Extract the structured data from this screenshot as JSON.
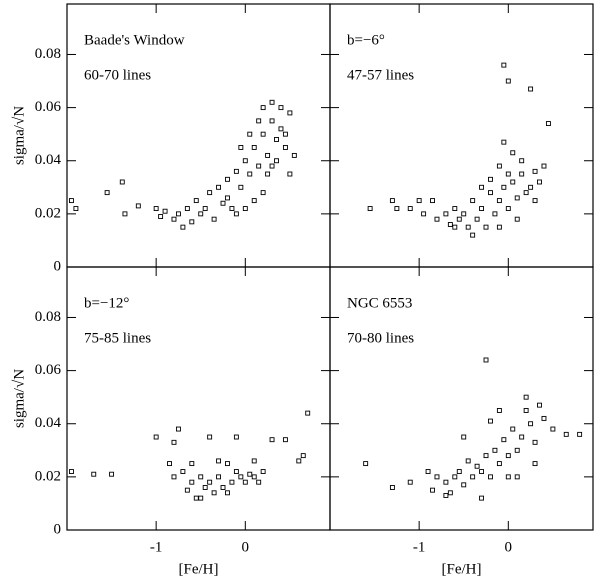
{
  "chart_data": [
    {
      "type": "scatter",
      "title": "Baade's Window",
      "subtitle": "60-70 lines",
      "ylabel": "sigma/√N",
      "xlim": [
        -2,
        0.95
      ],
      "ylim": [
        0,
        0.099
      ],
      "xticks": [
        -1,
        0
      ],
      "yticks": [
        0,
        0.02,
        0.04,
        0.06,
        0.08
      ],
      "x": [
        -1.95,
        -1.9,
        -1.55,
        -1.38,
        -1.35,
        -1.2,
        -1.0,
        -0.95,
        -0.9,
        -0.8,
        -0.75,
        -0.7,
        -0.65,
        -0.6,
        -0.55,
        -0.5,
        -0.45,
        -0.4,
        -0.35,
        -0.3,
        -0.25,
        -0.2,
        -0.15,
        -0.1,
        -0.05,
        0,
        0.05,
        0.1,
        0.15,
        0.2,
        0.25,
        0.3,
        0.35,
        0.4,
        0.45,
        0.5,
        0.55,
        0.3,
        0.2,
        0.1,
        -0.05,
        0,
        0.15,
        0.25,
        0.4,
        0.35,
        -0.2,
        -0.1,
        0.05,
        0.2,
        0.3,
        0.45,
        0.5
      ],
      "y": [
        0.025,
        0.022,
        0.028,
        0.032,
        0.02,
        0.023,
        0.022,
        0.019,
        0.021,
        0.018,
        0.02,
        0.015,
        0.022,
        0.017,
        0.025,
        0.02,
        0.022,
        0.028,
        0.018,
        0.03,
        0.024,
        0.033,
        0.022,
        0.036,
        0.03,
        0.04,
        0.035,
        0.045,
        0.038,
        0.05,
        0.042,
        0.055,
        0.048,
        0.052,
        0.045,
        0.058,
        0.042,
        0.062,
        0.028,
        0.025,
        0.045,
        0.022,
        0.055,
        0.035,
        0.06,
        0.04,
        0.026,
        0.02,
        0.05,
        0.06,
        0.038,
        0.05,
        0.035
      ]
    },
    {
      "type": "scatter",
      "title": "b=−6°",
      "subtitle": "47-57 lines",
      "xlim": [
        -2,
        0.95
      ],
      "ylim": [
        0,
        0.099
      ],
      "xticks": [
        -1,
        0
      ],
      "yticks": [
        0,
        0.02,
        0.04,
        0.06,
        0.08
      ],
      "x": [
        -1.55,
        -1.3,
        -1.25,
        -1.1,
        -1.0,
        -0.95,
        -0.85,
        -0.8,
        -0.7,
        -0.65,
        -0.6,
        -0.55,
        -0.5,
        -0.45,
        -0.4,
        -0.35,
        -0.3,
        -0.25,
        -0.2,
        -0.15,
        -0.1,
        -0.05,
        0,
        0.05,
        0.1,
        0.15,
        0.2,
        0.25,
        0.3,
        0.35,
        0.4,
        -0.05,
        0,
        0.25,
        0.45,
        -0.05,
        0.05,
        0.15,
        -0.1,
        0,
        -0.2,
        -0.3,
        0.1,
        -0.6,
        -0.1,
        0.3,
        -0.4
      ],
      "y": [
        0.022,
        0.025,
        0.022,
        0.022,
        0.025,
        0.02,
        0.025,
        0.018,
        0.02,
        0.016,
        0.022,
        0.018,
        0.02,
        0.015,
        0.025,
        0.018,
        0.022,
        0.015,
        0.028,
        0.02,
        0.025,
        0.03,
        0.022,
        0.032,
        0.026,
        0.035,
        0.028,
        0.03,
        0.036,
        0.032,
        0.038,
        0.076,
        0.07,
        0.067,
        0.054,
        0.047,
        0.043,
        0.04,
        0.038,
        0.035,
        0.033,
        0.03,
        0.018,
        0.015,
        0.015,
        0.025,
        0.012
      ]
    },
    {
      "type": "scatter",
      "title": "b=−12°",
      "subtitle": "75-85 lines",
      "ylabel": "sigma/√N",
      "xlabel": "[Fe/H]",
      "xlim": [
        -2,
        0.95
      ],
      "ylim": [
        0,
        0.099
      ],
      "xticks": [
        -1,
        0
      ],
      "yticks": [
        0,
        0.02,
        0.04,
        0.06,
        0.08
      ],
      "x": [
        -1.95,
        -1.7,
        -1.5,
        -1.0,
        -0.8,
        -0.75,
        -0.85,
        -0.8,
        -0.7,
        -0.65,
        -0.6,
        -0.55,
        -0.5,
        -0.45,
        -0.4,
        -0.35,
        -0.3,
        -0.25,
        -0.2,
        -0.15,
        -0.1,
        -0.05,
        0,
        0.05,
        0.1,
        0.15,
        -0.4,
        -0.1,
        0.3,
        0.45,
        0.65,
        0.6,
        0.7,
        -0.3,
        0.1,
        -0.5,
        -0.2,
        -0.6,
        0.2
      ],
      "y": [
        0.022,
        0.021,
        0.021,
        0.035,
        0.033,
        0.038,
        0.025,
        0.02,
        0.022,
        0.015,
        0.018,
        0.012,
        0.02,
        0.016,
        0.018,
        0.014,
        0.02,
        0.016,
        0.025,
        0.018,
        0.022,
        0.02,
        0.018,
        0.021,
        0.02,
        0.018,
        0.035,
        0.035,
        0.034,
        0.034,
        0.028,
        0.026,
        0.044,
        0.026,
        0.026,
        0.012,
        0.014,
        0.025,
        0.022
      ]
    },
    {
      "type": "scatter",
      "title": "NGC 6553",
      "subtitle": "70-80 lines",
      "xlabel": "[Fe/H]",
      "xlim": [
        -2,
        0.95
      ],
      "ylim": [
        0,
        0.099
      ],
      "xticks": [
        -1,
        0
      ],
      "yticks": [
        0,
        0.02,
        0.04,
        0.06,
        0.08
      ],
      "x": [
        -1.6,
        -1.3,
        -1.1,
        -0.9,
        -0.85,
        -0.8,
        -0.7,
        -0.65,
        -0.6,
        -0.55,
        -0.5,
        -0.45,
        -0.4,
        -0.35,
        -0.3,
        -0.25,
        -0.2,
        -0.15,
        -0.1,
        -0.05,
        0,
        0.05,
        0.1,
        0.15,
        0.2,
        0.25,
        0.3,
        0.35,
        0.4,
        0.5,
        0.65,
        0.8,
        -0.25,
        -0.5,
        -0.2,
        -0.1,
        0.2,
        0.1,
        -0.3,
        0,
        -0.7,
        0.3
      ],
      "y": [
        0.025,
        0.016,
        0.018,
        0.022,
        0.015,
        0.02,
        0.018,
        0.014,
        0.02,
        0.022,
        0.017,
        0.026,
        0.02,
        0.024,
        0.022,
        0.028,
        0.02,
        0.03,
        0.025,
        0.034,
        0.028,
        0.038,
        0.03,
        0.035,
        0.045,
        0.04,
        0.033,
        0.047,
        0.042,
        0.038,
        0.036,
        0.036,
        0.064,
        0.035,
        0.041,
        0.045,
        0.05,
        0.02,
        0.012,
        0.02,
        0.013,
        0.025
      ]
    }
  ]
}
